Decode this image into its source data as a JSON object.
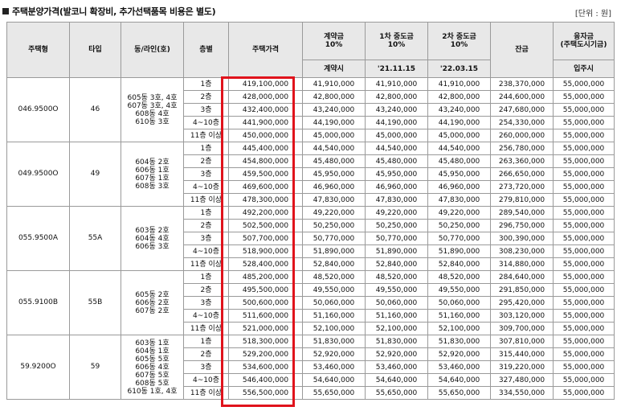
{
  "title": "주택분양가격(발코니 확장비, 추가선택품목 비용은 별도)",
  "unit_label": "[단위 : 원]",
  "headers": {
    "house_type": "주택형",
    "type": "타입",
    "dong_line": "동/라인(호)",
    "floor": "층별",
    "price": "주택가격",
    "contract": "계약금\n10%",
    "mid1": "1차 중도금\n10%",
    "mid2": "2차 중도금\n10%",
    "balance": "잔금",
    "loan": "융자금\n(주택도시기금)",
    "contract_when": "계약시",
    "mid1_when": "'21.11.15",
    "mid2_when": "'22.03.15",
    "move_in": "입주시"
  },
  "groups": [
    {
      "house_type": "046.9500O",
      "type": "46",
      "dongs": "605동 3호, 4호\n607동 3호, 4호\n608동 4호\n610동 3호",
      "rows": [
        [
          "1층",
          "419,100,000",
          "41,910,000",
          "41,910,000",
          "41,910,000",
          "238,370,000",
          "55,000,000"
        ],
        [
          "2층",
          "428,000,000",
          "42,800,000",
          "42,800,000",
          "42,800,000",
          "244,600,000",
          "55,000,000"
        ],
        [
          "3층",
          "432,400,000",
          "43,240,000",
          "43,240,000",
          "43,240,000",
          "247,680,000",
          "55,000,000"
        ],
        [
          "4~10층",
          "441,900,000",
          "44,190,000",
          "44,190,000",
          "44,190,000",
          "254,330,000",
          "55,000,000"
        ],
        [
          "11층 이상",
          "450,000,000",
          "45,000,000",
          "45,000,000",
          "45,000,000",
          "260,000,000",
          "55,000,000"
        ]
      ]
    },
    {
      "house_type": "049.9500O",
      "type": "49",
      "dongs": "604동 2호\n606동 1호\n607동 1호\n608동 3호",
      "rows": [
        [
          "1층",
          "445,400,000",
          "44,540,000",
          "44,540,000",
          "44,540,000",
          "256,780,000",
          "55,000,000"
        ],
        [
          "2층",
          "454,800,000",
          "45,480,000",
          "45,480,000",
          "45,480,000",
          "263,360,000",
          "55,000,000"
        ],
        [
          "3층",
          "459,500,000",
          "45,950,000",
          "45,950,000",
          "45,950,000",
          "266,650,000",
          "55,000,000"
        ],
        [
          "4~10층",
          "469,600,000",
          "46,960,000",
          "46,960,000",
          "46,960,000",
          "273,720,000",
          "55,000,000"
        ],
        [
          "11층 이상",
          "478,300,000",
          "47,830,000",
          "47,830,000",
          "47,830,000",
          "279,810,000",
          "55,000,000"
        ]
      ]
    },
    {
      "house_type": "055.9500A",
      "type": "55A",
      "dongs": "603동 2호\n604동 4호\n606동 3호",
      "rows": [
        [
          "1층",
          "492,200,000",
          "49,220,000",
          "49,220,000",
          "49,220,000",
          "289,540,000",
          "55,000,000"
        ],
        [
          "2층",
          "502,500,000",
          "50,250,000",
          "50,250,000",
          "50,250,000",
          "296,750,000",
          "55,000,000"
        ],
        [
          "3층",
          "507,700,000",
          "50,770,000",
          "50,770,000",
          "50,770,000",
          "300,390,000",
          "55,000,000"
        ],
        [
          "4~10층",
          "518,900,000",
          "51,890,000",
          "51,890,000",
          "51,890,000",
          "308,230,000",
          "55,000,000"
        ],
        [
          "11층 이상",
          "528,400,000",
          "52,840,000",
          "52,840,000",
          "52,840,000",
          "314,880,000",
          "55,000,000"
        ]
      ]
    },
    {
      "house_type": "055.9100B",
      "type": "55B",
      "dongs": "605동 2호\n606동 2호\n607동 2호",
      "rows": [
        [
          "1층",
          "485,200,000",
          "48,520,000",
          "48,520,000",
          "48,520,000",
          "284,640,000",
          "55,000,000"
        ],
        [
          "2층",
          "495,500,000",
          "49,550,000",
          "49,550,000",
          "49,550,000",
          "291,850,000",
          "55,000,000"
        ],
        [
          "3층",
          "500,600,000",
          "50,060,000",
          "50,060,000",
          "50,060,000",
          "295,420,000",
          "55,000,000"
        ],
        [
          "4~10층",
          "511,600,000",
          "51,160,000",
          "51,160,000",
          "51,160,000",
          "303,120,000",
          "55,000,000"
        ],
        [
          "11층 이상",
          "521,000,000",
          "52,100,000",
          "52,100,000",
          "52,100,000",
          "309,700,000",
          "55,000,000"
        ]
      ]
    },
    {
      "house_type": "59.9200O",
      "type": "59",
      "dongs": "603동 1호\n604동 1호\n605동 5호\n606동 4호\n607동 5호\n608동 5호\n610동 1호, 4호",
      "rows": [
        [
          "1층",
          "518,300,000",
          "51,830,000",
          "51,830,000",
          "51,830,000",
          "307,810,000",
          "55,000,000"
        ],
        [
          "2층",
          "529,200,000",
          "52,920,000",
          "52,920,000",
          "52,920,000",
          "315,440,000",
          "55,000,000"
        ],
        [
          "3층",
          "534,600,000",
          "53,460,000",
          "53,460,000",
          "53,460,000",
          "319,220,000",
          "55,000,000"
        ],
        [
          "4~10층",
          "546,400,000",
          "54,640,000",
          "54,640,000",
          "54,640,000",
          "327,480,000",
          "55,000,000"
        ],
        [
          "11층 이상",
          "556,500,000",
          "55,650,000",
          "55,650,000",
          "55,650,000",
          "334,550,000",
          "55,000,000"
        ]
      ]
    }
  ]
}
